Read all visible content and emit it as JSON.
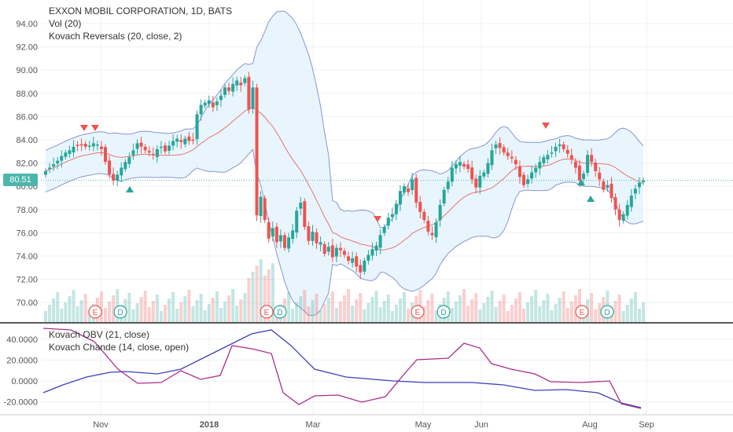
{
  "header": {
    "title": "EXXON MOBIL CORPORATION, 1D, BATS",
    "indicator_vol": "Vol (20)",
    "indicator_reversals": "Kovach Reversals (20, close, 2)"
  },
  "lower_pane": {
    "indicator_obv": "Kovach OBV (21, close)",
    "indicator_chande": "Kovach Chande (14, close, open)"
  },
  "last_price_label": "80.51",
  "colors": {
    "up": "#26a69a",
    "down": "#ef5350",
    "band_fill": "#e3f2fd",
    "band_line": "#3f51b5",
    "obv_line": "#3f3fbf",
    "chande_line": "#ab2d8f",
    "earnings": "#ef5350",
    "dividend": "#26a69a"
  },
  "chart_data": [
    {
      "type": "candlestick",
      "title": "EXXON MOBIL CORPORATION, 1D, BATS",
      "y_ticks": [
        "94.00",
        "92.00",
        "90.00",
        "88.00",
        "86.00",
        "84.00",
        "82.00",
        "80.00",
        "78.00",
        "76.00",
        "74.00",
        "72.00",
        "70.00"
      ],
      "ylim": [
        68.4,
        95.3
      ],
      "x_ticks": [
        "Nov",
        "2018",
        "Mar",
        "May",
        "Jun",
        "Aug",
        "Sep"
      ],
      "last_price": 80.51,
      "close": [
        81.3,
        81.6,
        81.9,
        82.2,
        82.6,
        82.9,
        83.1,
        83.4,
        83.5,
        83.6,
        83.4,
        83.5,
        83.7,
        83.6,
        83.2,
        82.1,
        81.0,
        80.5,
        81.0,
        81.6,
        82.1,
        82.5,
        83.1,
        83.7,
        83.4,
        83.1,
        82.9,
        82.7,
        83.2,
        83.4,
        83.0,
        83.5,
        83.9,
        84.1,
        83.8,
        84.1,
        83.9,
        84.0,
        86.2,
        87.0,
        87.2,
        87.4,
        86.8,
        87.3,
        87.8,
        88.5,
        88.2,
        88.8,
        89.1,
        88.7,
        89.3,
        86.6,
        88.5,
        77.5,
        79.1,
        77.1,
        75.5,
        76.4,
        75.2,
        75.8,
        74.7,
        75.6,
        76.2,
        77.9,
        78.6,
        76.5,
        75.3,
        76.1,
        75.1,
        75.2,
        74.2,
        74.8,
        73.9,
        74.7,
        74.5,
        74.1,
        73.6,
        73.8,
        73.1,
        72.6,
        73.6,
        74.1,
        74.6,
        74.9,
        75.8,
        76.5,
        77.3,
        77.6,
        78.5,
        79.6,
        80.0,
        79.5,
        80.6,
        78.6,
        77.8,
        77.1,
        76.1,
        75.8,
        76.9,
        78.4,
        79.7,
        80.4,
        81.6,
        81.9,
        82.1,
        81.7,
        81.5,
        80.6,
        79.9,
        80.9,
        81.2,
        82.0,
        83.1,
        83.6,
        83.3,
        82.9,
        82.6,
        82.4,
        81.9,
        80.8,
        80.1,
        80.6,
        81.2,
        81.6,
        82.1,
        82.5,
        82.7,
        82.9,
        83.4,
        83.6,
        83.2,
        82.8,
        82.3,
        81.6,
        80.5,
        81.1,
        82.7,
        82.1,
        81.3,
        80.6,
        79.7,
        80.1,
        79.0,
        78.0,
        77.1,
        77.6,
        78.4,
        79.2,
        79.8,
        80.3,
        80.5
      ],
      "earnings_markers": [
        "E",
        "E",
        "E",
        "E"
      ],
      "dividend_markers": [
        "D",
        "D",
        "D",
        "D"
      ]
    },
    {
      "type": "line",
      "title": "",
      "series": [
        {
          "name": "Kovach OBV (21, close)"
        },
        {
          "name": "Kovach Chande (14, close, open)"
        }
      ],
      "y_ticks": [
        "40.0000",
        "20.0000",
        "0.0000",
        "-20.0000"
      ],
      "ylim": [
        -30,
        50
      ]
    }
  ]
}
